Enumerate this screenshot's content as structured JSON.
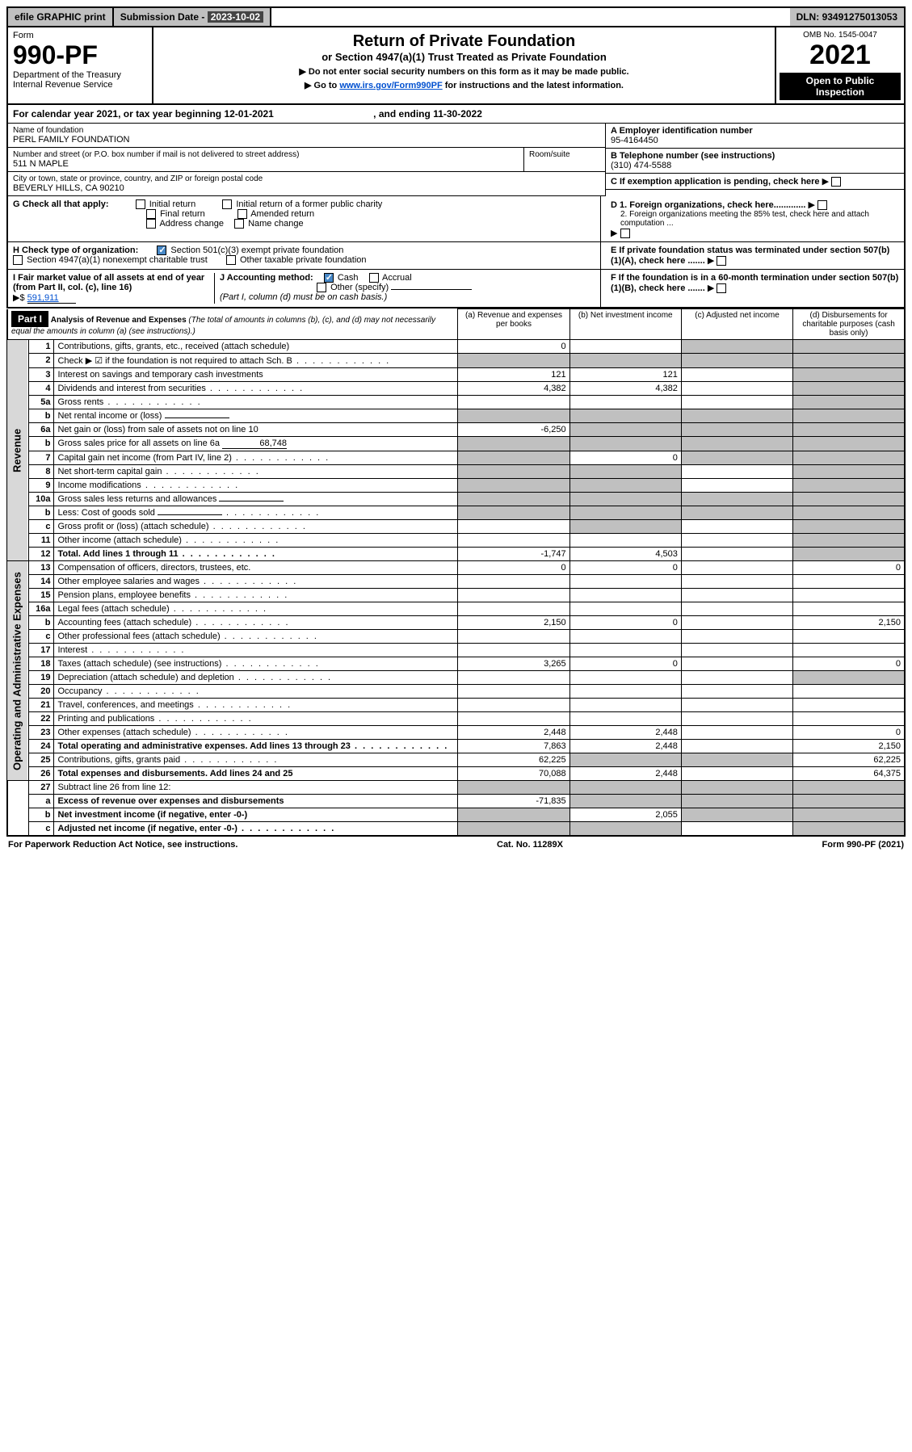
{
  "topbar": {
    "efile": "efile GRAPHIC print",
    "submission_label": "Submission Date - ",
    "submission_date": "2023-10-02",
    "dln_label": "DLN: ",
    "dln": "93491275013053"
  },
  "header": {
    "form_label": "Form",
    "form_no": "990-PF",
    "dept": "Department of the Treasury",
    "irs": "Internal Revenue Service",
    "title": "Return of Private Foundation",
    "subtitle": "or Section 4947(a)(1) Trust Treated as Private Foundation",
    "note1": "▶ Do not enter social security numbers on this form as it may be made public.",
    "note2_pre": "▶ Go to ",
    "note2_link": "www.irs.gov/Form990PF",
    "note2_post": " for instructions and the latest information.",
    "omb": "OMB No. 1545-0047",
    "year": "2021",
    "open": "Open to Public Inspection"
  },
  "cal_year": {
    "text_pre": "For calendar year 2021, or tax year beginning ",
    "begin": "12-01-2021",
    "mid": " , and ending ",
    "end": "11-30-2022"
  },
  "info": {
    "name_label": "Name of foundation",
    "name": "PERL FAMILY FOUNDATION",
    "addr_label": "Number and street (or P.O. box number if mail is not delivered to street address)",
    "addr": "511 N MAPLE",
    "room_label": "Room/suite",
    "city_label": "City or town, state or province, country, and ZIP or foreign postal code",
    "city": "BEVERLY HILLS, CA  90210",
    "ein_label": "A Employer identification number",
    "ein": "95-4164450",
    "phone_label": "B Telephone number (see instructions)",
    "phone": "(310) 474-5588",
    "c_label": "C If exemption application is pending, check here",
    "d1_label": "D 1. Foreign organizations, check here.............",
    "d2_label": "2. Foreign organizations meeting the 85% test, check here and attach computation ...",
    "e_label": "E If private foundation status was terminated under section 507(b)(1)(A), check here .......",
    "f_label": "F If the foundation is in a 60-month termination under section 507(b)(1)(B), check here ......."
  },
  "g": {
    "label": "G Check all that apply:",
    "initial": "Initial return",
    "final": "Final return",
    "addr_change": "Address change",
    "initial_former": "Initial return of a former public charity",
    "amended": "Amended return",
    "name_change": "Name change"
  },
  "h": {
    "label": "H Check type of organization:",
    "sec501": "Section 501(c)(3) exempt private foundation",
    "sec4947": "Section 4947(a)(1) nonexempt charitable trust",
    "other_tax": "Other taxable private foundation"
  },
  "i": {
    "label": "I Fair market value of all assets at end of year (from Part II, col. (c), line 16)",
    "arrow": "▶$",
    "value": "591,911"
  },
  "j": {
    "label": "J Accounting method:",
    "cash": "Cash",
    "accrual": "Accrual",
    "other": "Other (specify)",
    "note": "(Part I, column (d) must be on cash basis.)"
  },
  "part1": {
    "label": "Part I",
    "title": "Analysis of Revenue and Expenses",
    "title_note": " (The total of amounts in columns (b), (c), and (d) may not necessarily equal the amounts in column (a) (see instructions).)",
    "col_a": "(a) Revenue and expenses per books",
    "col_b": "(b) Net investment income",
    "col_c": "(c) Adjusted net income",
    "col_d": "(d) Disbursements for charitable purposes (cash basis only)"
  },
  "sections": {
    "revenue": "Revenue",
    "operating": "Operating and Administrative Expenses"
  },
  "rows": [
    {
      "n": "1",
      "desc": "Contributions, gifts, grants, etc., received (attach schedule)",
      "a": "0",
      "b": "",
      "c": "shade",
      "d": "shade"
    },
    {
      "n": "2",
      "desc": "Check ▶ ☑ if the foundation is not required to attach Sch. B",
      "dots": true,
      "a": "shade",
      "b": "shade",
      "c": "shade",
      "d": "shade",
      "checkbox": true
    },
    {
      "n": "3",
      "desc": "Interest on savings and temporary cash investments",
      "a": "121",
      "b": "121",
      "c": "",
      "d": "shade"
    },
    {
      "n": "4",
      "desc": "Dividends and interest from securities",
      "dots": true,
      "a": "4,382",
      "b": "4,382",
      "c": "",
      "d": "shade"
    },
    {
      "n": "5a",
      "desc": "Gross rents",
      "dots": true,
      "a": "",
      "b": "",
      "c": "",
      "d": "shade"
    },
    {
      "n": "b",
      "desc": "Net rental income or (loss)",
      "inline": true,
      "a": "shade",
      "b": "shade",
      "c": "shade",
      "d": "shade"
    },
    {
      "n": "6a",
      "desc": "Net gain or (loss) from sale of assets not on line 10",
      "a": "-6,250",
      "b": "shade",
      "c": "shade",
      "d": "shade"
    },
    {
      "n": "b",
      "desc": "Gross sales price for all assets on line 6a",
      "inline_val": "68,748",
      "a": "shade",
      "b": "shade",
      "c": "shade",
      "d": "shade"
    },
    {
      "n": "7",
      "desc": "Capital gain net income (from Part IV, line 2)",
      "dots": true,
      "a": "shade",
      "b": "0",
      "c": "shade",
      "d": "shade"
    },
    {
      "n": "8",
      "desc": "Net short-term capital gain",
      "dots": true,
      "a": "shade",
      "b": "shade",
      "c": "",
      "d": "shade"
    },
    {
      "n": "9",
      "desc": "Income modifications",
      "dots": true,
      "a": "shade",
      "b": "shade",
      "c": "",
      "d": "shade"
    },
    {
      "n": "10a",
      "desc": "Gross sales less returns and allowances",
      "inline": true,
      "a": "shade",
      "b": "shade",
      "c": "shade",
      "d": "shade"
    },
    {
      "n": "b",
      "desc": "Less: Cost of goods sold",
      "dots": true,
      "inline": true,
      "a": "shade",
      "b": "shade",
      "c": "shade",
      "d": "shade"
    },
    {
      "n": "c",
      "desc": "Gross profit or (loss) (attach schedule)",
      "dots": true,
      "a": "",
      "b": "shade",
      "c": "",
      "d": "shade"
    },
    {
      "n": "11",
      "desc": "Other income (attach schedule)",
      "dots": true,
      "a": "",
      "b": "",
      "c": "",
      "d": "shade"
    },
    {
      "n": "12",
      "desc": "Total. Add lines 1 through 11",
      "dots": true,
      "bold": true,
      "a": "-1,747",
      "b": "4,503",
      "c": "",
      "d": "shade"
    },
    {
      "n": "13",
      "desc": "Compensation of officers, directors, trustees, etc.",
      "a": "0",
      "b": "0",
      "c": "",
      "d": "0",
      "section": "operating"
    },
    {
      "n": "14",
      "desc": "Other employee salaries and wages",
      "dots": true,
      "a": "",
      "b": "",
      "c": "",
      "d": ""
    },
    {
      "n": "15",
      "desc": "Pension plans, employee benefits",
      "dots": true,
      "a": "",
      "b": "",
      "c": "",
      "d": ""
    },
    {
      "n": "16a",
      "desc": "Legal fees (attach schedule)",
      "dots": true,
      "a": "",
      "b": "",
      "c": "",
      "d": ""
    },
    {
      "n": "b",
      "desc": "Accounting fees (attach schedule)",
      "dots": true,
      "a": "2,150",
      "b": "0",
      "c": "",
      "d": "2,150"
    },
    {
      "n": "c",
      "desc": "Other professional fees (attach schedule)",
      "dots": true,
      "a": "",
      "b": "",
      "c": "",
      "d": ""
    },
    {
      "n": "17",
      "desc": "Interest",
      "dots": true,
      "a": "",
      "b": "",
      "c": "",
      "d": ""
    },
    {
      "n": "18",
      "desc": "Taxes (attach schedule) (see instructions)",
      "dots": true,
      "a": "3,265",
      "b": "0",
      "c": "",
      "d": "0"
    },
    {
      "n": "19",
      "desc": "Depreciation (attach schedule) and depletion",
      "dots": true,
      "a": "",
      "b": "",
      "c": "",
      "d": "shade"
    },
    {
      "n": "20",
      "desc": "Occupancy",
      "dots": true,
      "a": "",
      "b": "",
      "c": "",
      "d": ""
    },
    {
      "n": "21",
      "desc": "Travel, conferences, and meetings",
      "dots": true,
      "a": "",
      "b": "",
      "c": "",
      "d": ""
    },
    {
      "n": "22",
      "desc": "Printing and publications",
      "dots": true,
      "a": "",
      "b": "",
      "c": "",
      "d": ""
    },
    {
      "n": "23",
      "desc": "Other expenses (attach schedule)",
      "dots": true,
      "a": "2,448",
      "b": "2,448",
      "c": "",
      "d": "0"
    },
    {
      "n": "24",
      "desc": "Total operating and administrative expenses. Add lines 13 through 23",
      "dots": true,
      "bold": true,
      "a": "7,863",
      "b": "2,448",
      "c": "",
      "d": "2,150"
    },
    {
      "n": "25",
      "desc": "Contributions, gifts, grants paid",
      "dots": true,
      "a": "62,225",
      "b": "shade",
      "c": "shade",
      "d": "62,225"
    },
    {
      "n": "26",
      "desc": "Total expenses and disbursements. Add lines 24 and 25",
      "bold": true,
      "a": "70,088",
      "b": "2,448",
      "c": "",
      "d": "64,375"
    },
    {
      "n": "27",
      "desc": "Subtract line 26 from line 12:",
      "a": "shade",
      "b": "shade",
      "c": "shade",
      "d": "shade",
      "section": "none"
    },
    {
      "n": "a",
      "desc": "Excess of revenue over expenses and disbursements",
      "bold": true,
      "a": "-71,835",
      "b": "shade",
      "c": "shade",
      "d": "shade"
    },
    {
      "n": "b",
      "desc": "Net investment income (if negative, enter -0-)",
      "bold": true,
      "a": "shade",
      "b": "2,055",
      "c": "shade",
      "d": "shade"
    },
    {
      "n": "c",
      "desc": "Adjusted net income (if negative, enter -0-)",
      "dots": true,
      "bold": true,
      "a": "shade",
      "b": "shade",
      "c": "",
      "d": "shade"
    }
  ],
  "footer": {
    "left": "For Paperwork Reduction Act Notice, see instructions.",
    "center": "Cat. No. 11289X",
    "right": "Form 990-PF (2021)"
  }
}
